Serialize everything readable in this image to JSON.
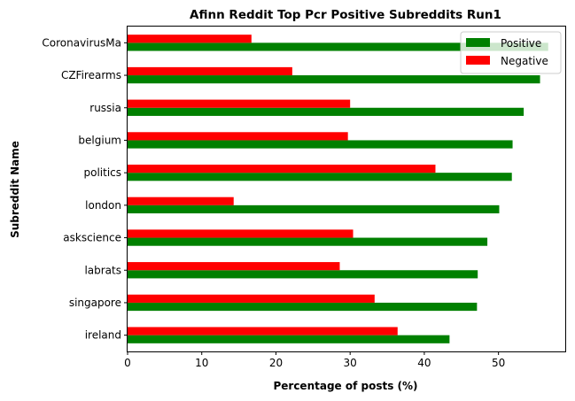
{
  "chart_data": {
    "type": "bar",
    "orientation": "horizontal",
    "title": "Afinn Reddit Top Pcr Positive Subreddits Run1",
    "xlabel": "Percentage of posts (%)",
    "ylabel": "Subreddit Name",
    "xlim": [
      0,
      59
    ],
    "xticks": [
      0,
      10,
      20,
      30,
      40,
      50
    ],
    "categories": [
      "CoronavirusMa",
      "CZFirearms",
      "russia",
      "belgium",
      "politics",
      "london",
      "askscience",
      "labrats",
      "singapore",
      "ireland"
    ],
    "series": [
      {
        "name": "Positive",
        "color": "#008000",
        "values": [
          56.7,
          55.6,
          53.4,
          51.9,
          51.8,
          50.1,
          48.5,
          47.2,
          47.1,
          43.4
        ]
      },
      {
        "name": "Negative",
        "color": "#ff0000",
        "values": [
          16.7,
          22.2,
          30.0,
          29.7,
          41.5,
          14.3,
          30.4,
          28.6,
          33.3,
          36.4
        ]
      }
    ],
    "legend_position": "top-right",
    "grid": false
  }
}
